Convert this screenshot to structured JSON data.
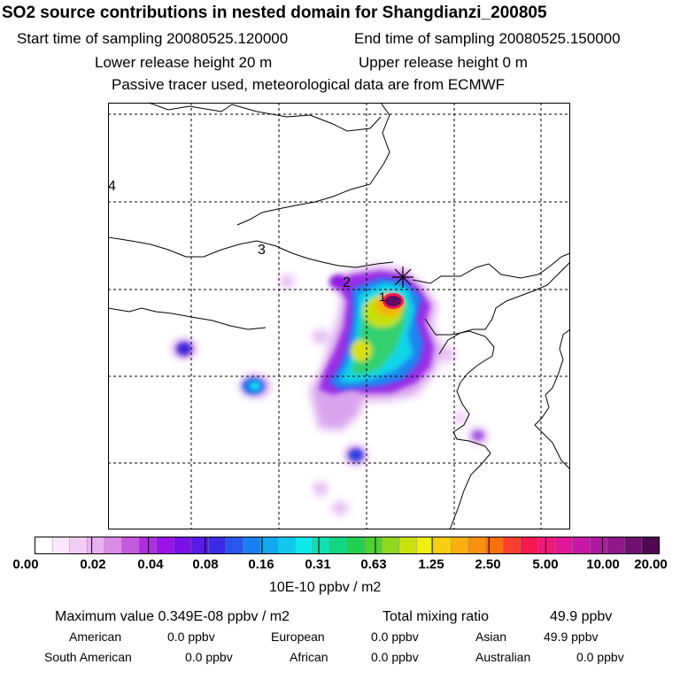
{
  "header": {
    "title": "SO2 source contributions in nested domain for Shangdianzi_200805",
    "start_time": "Start time of sampling 20080525.120000",
    "end_time": "End time of sampling 20080525.150000",
    "lower_release": "Lower release height   20 m",
    "upper_release": "Upper release height    0 m",
    "tracer_note": "Passive tracer used, meteorological data are from ECMWF"
  },
  "map": {
    "contour_labels": [
      "4",
      "3",
      "2",
      "1"
    ],
    "station_marker": "star-icon"
  },
  "colorbar": {
    "ticks": [
      "0.00",
      "0.02",
      "0.04",
      "0.08",
      "0.16",
      "0.31",
      "0.63",
      "1.25",
      "2.50",
      "5.00",
      "10.00",
      "20.00"
    ],
    "units": "10E-10 ppbv / m2",
    "colors": [
      "#ffffff",
      "#fbe6fb",
      "#f3ccf3",
      "#e9b0ef",
      "#d98ce6",
      "#c45ae0",
      "#b02ee0",
      "#9b14e6",
      "#7a10e8",
      "#5a1ae8",
      "#3a2ae6",
      "#2a55ee",
      "#1a7ff0",
      "#12a8f0",
      "#10c8ee",
      "#10e8e8",
      "#10e0b0",
      "#10d880",
      "#20d050",
      "#50d030",
      "#90d820",
      "#c8e010",
      "#f0f010",
      "#f8d010",
      "#f8b010",
      "#f89010",
      "#f87010",
      "#f84030",
      "#f81850",
      "#f01878",
      "#e01898",
      "#c818a8",
      "#b018a0",
      "#901888",
      "#701070",
      "#500850"
    ]
  },
  "stats": {
    "max_label": "Maximum value  0.349E-08 ppbv / m2",
    "total_label": "Total mixing ratio",
    "total_value": "49.9 ppbv",
    "regions": [
      {
        "name": "American",
        "value": "0.0 ppbv"
      },
      {
        "name": "European",
        "value": "0.0 ppbv"
      },
      {
        "name": "Asian",
        "value": "49.9 ppbv"
      },
      {
        "name": "South American",
        "value": "0.0 ppbv"
      },
      {
        "name": "African",
        "value": "0.0 ppbv"
      },
      {
        "name": "Australian",
        "value": "0.0 ppbv"
      }
    ]
  }
}
